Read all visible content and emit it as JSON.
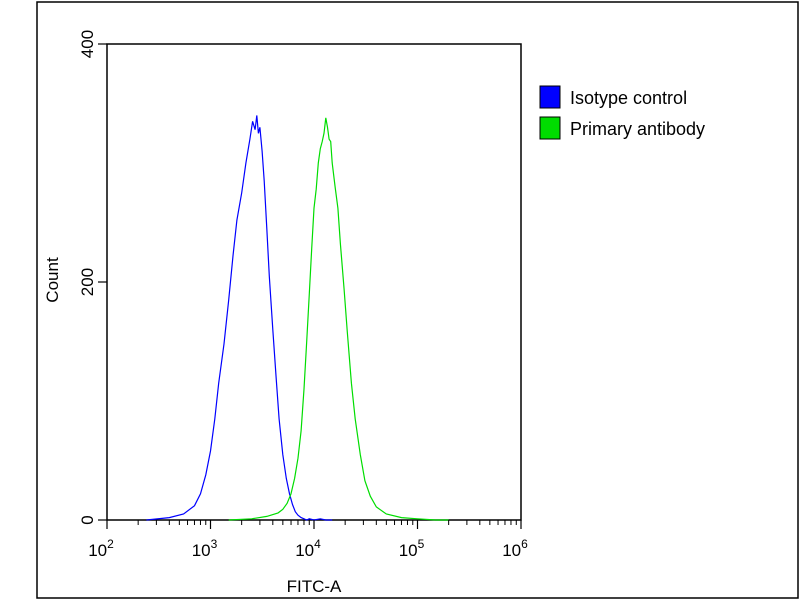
{
  "chart_data": {
    "type": "line",
    "title": "",
    "xlabel": "FITC-A",
    "ylabel": "Count",
    "x_scale": "log",
    "xlim": [
      100,
      1000000
    ],
    "ylim": [
      0,
      400
    ],
    "x_ticks": [
      {
        "value": 100,
        "base": "10",
        "exp": "2"
      },
      {
        "value": 1000,
        "base": "10",
        "exp": "3"
      },
      {
        "value": 10000,
        "base": "10",
        "exp": "4"
      },
      {
        "value": 100000,
        "base": "10",
        "exp": "5"
      },
      {
        "value": 1000000,
        "base": "10",
        "exp": "6"
      }
    ],
    "y_ticks": [
      {
        "value": 0,
        "label": "0"
      },
      {
        "value": 200,
        "label": "200"
      },
      {
        "value": 400,
        "label": "400"
      }
    ],
    "grid": false,
    "legend_position": "right",
    "series": [
      {
        "name": "Isotype control",
        "color": "#0000ff",
        "x": [
          240,
          400,
          550,
          700,
          800,
          900,
          1000,
          1100,
          1200,
          1350,
          1500,
          1650,
          1800,
          2000,
          2200,
          2400,
          2550,
          2700,
          2800,
          2900,
          3000,
          3150,
          3300,
          3500,
          3700,
          4000,
          4300,
          4600,
          5000,
          5400,
          5800,
          6200,
          6600,
          7000,
          7500,
          8000,
          8500,
          9000,
          10000,
          11500,
          13000,
          15000
        ],
        "y": [
          0,
          2,
          5,
          12,
          22,
          38,
          58,
          85,
          115,
          148,
          185,
          222,
          252,
          275,
          300,
          320,
          335,
          328,
          340,
          325,
          330,
          310,
          285,
          245,
          205,
          160,
          120,
          85,
          55,
          35,
          22,
          13,
          7,
          4,
          2,
          1,
          0,
          1,
          0,
          1,
          0,
          0
        ]
      },
      {
        "name": "Primary antibody",
        "color": "#00dd00",
        "x": [
          1500,
          2500,
          3500,
          4500,
          5000,
          5500,
          6000,
          6500,
          7000,
          7500,
          8000,
          8500,
          9000,
          9500,
          10000,
          10500,
          11000,
          11500,
          12000,
          12500,
          13000,
          13500,
          14000,
          14500,
          15000,
          16000,
          17000,
          18000,
          19500,
          21000,
          23000,
          25000,
          28000,
          31000,
          35000,
          40000,
          50000,
          70000,
          100000,
          150000,
          200000
        ],
        "y": [
          0,
          1,
          3,
          6,
          9,
          14,
          22,
          35,
          52,
          75,
          110,
          150,
          190,
          228,
          262,
          278,
          300,
          312,
          318,
          325,
          338,
          330,
          320,
          318,
          300,
          280,
          262,
          232,
          195,
          158,
          115,
          85,
          55,
          33,
          20,
          11,
          5,
          2,
          1,
          0,
          0
        ]
      }
    ]
  }
}
